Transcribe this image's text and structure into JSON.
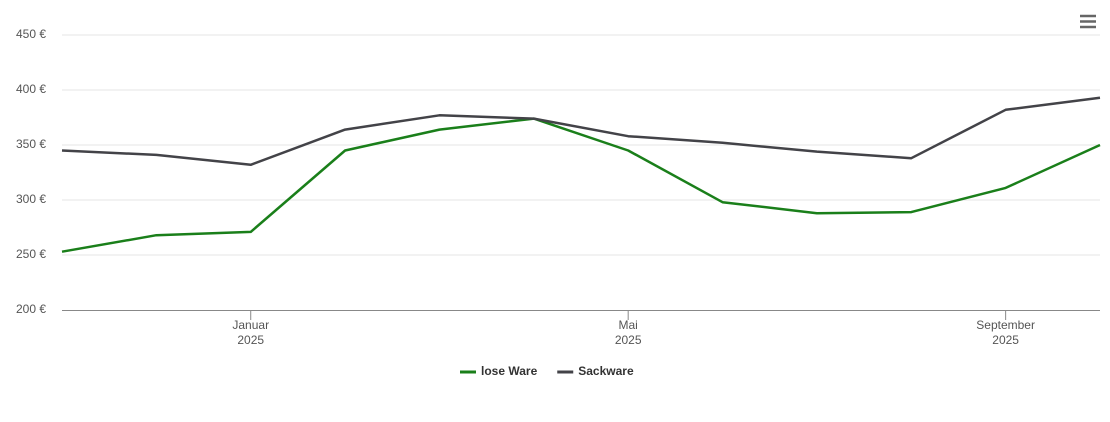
{
  "chart_data": {
    "type": "line",
    "x": [
      "2024-11",
      "2024-12",
      "2025-01",
      "2025-02",
      "2025-03",
      "2025-04",
      "2025-05",
      "2025-06",
      "2025-07",
      "2025-08",
      "2025-09",
      "2025-10"
    ],
    "series": [
      {
        "name": "lose Ware",
        "color": "#1a7f1a",
        "values": [
          253,
          268,
          271,
          345,
          364,
          374,
          345,
          298,
          288,
          289,
          311,
          350
        ]
      },
      {
        "name": "Sackware",
        "color": "#434348",
        "values": [
          345,
          341,
          332,
          364,
          377,
          374,
          358,
          352,
          344,
          338,
          382,
          393
        ]
      }
    ],
    "xlim": [
      "2024-11",
      "2025-10"
    ],
    "xticks": [
      {
        "value": "2025-01",
        "label": [
          "Januar",
          "2025"
        ]
      },
      {
        "value": "2025-05",
        "label": [
          "Mai",
          "2025"
        ]
      },
      {
        "value": "2025-09",
        "label": [
          "September",
          "2025"
        ]
      }
    ],
    "ylim": [
      200,
      450
    ],
    "yticks": [
      {
        "value": 200,
        "label": "200 €"
      },
      {
        "value": 250,
        "label": "250 €"
      },
      {
        "value": 300,
        "label": "300 €"
      },
      {
        "value": 350,
        "label": "350 €"
      },
      {
        "value": 400,
        "label": "400 €"
      },
      {
        "value": 450,
        "label": "450 €"
      }
    ],
    "grid": true,
    "legend": "bottom"
  }
}
